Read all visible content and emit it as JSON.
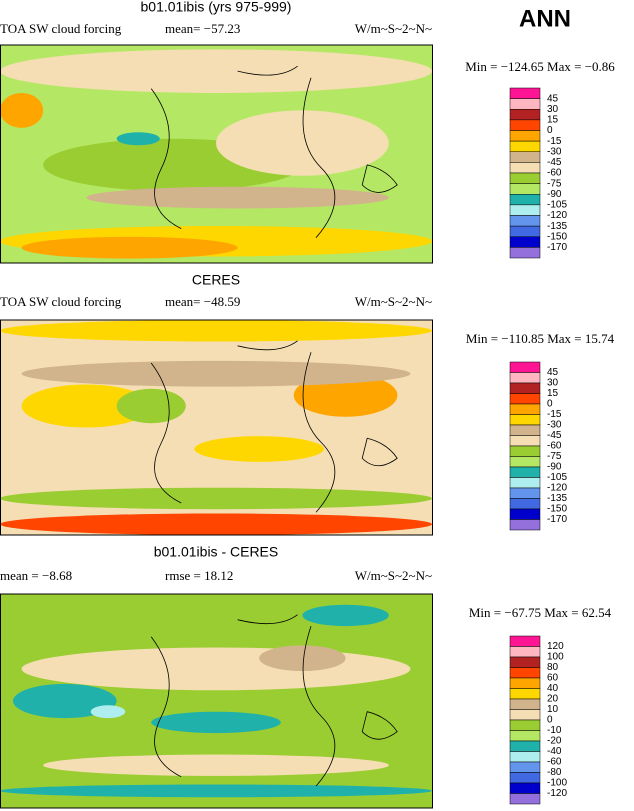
{
  "season": "ANN",
  "panels": [
    {
      "title": "b01.01ibis (yrs 975-999)",
      "left_label": "TOA SW cloud forcing",
      "mid_label": "mean= −57.23",
      "units": "W/m~S~2~N~",
      "minmax": "Min = −124.65 Max =  −0.86",
      "levels": [
        45,
        30,
        15,
        0,
        -15,
        -30,
        -45,
        -60,
        -75,
        -90,
        -105,
        -120,
        -135,
        -150,
        -170
      ],
      "colors": [
        "#ff1493",
        "#ffb6c1",
        "#b22222",
        "#ff4500",
        "#ffa500",
        "#ffd700",
        "#d2b48c",
        "#f5deb3",
        "#9acd32",
        "#b4e864",
        "#20b2aa",
        "#afeeee",
        "#6495ed",
        "#4169e1",
        "#0000cd",
        "#9370db"
      ]
    },
    {
      "title": "CERES",
      "left_label": "TOA SW cloud forcing",
      "mid_label": "mean= −48.59",
      "units": "W/m~S~2~N~",
      "minmax": "Min = −110.85 Max =  15.74",
      "levels": [
        45,
        30,
        15,
        0,
        -15,
        -30,
        -45,
        -60,
        -75,
        -90,
        -105,
        -120,
        -135,
        -150,
        -170
      ],
      "colors": [
        "#ff1493",
        "#ffb6c1",
        "#b22222",
        "#ff4500",
        "#ffa500",
        "#ffd700",
        "#d2b48c",
        "#f5deb3",
        "#9acd32",
        "#b4e864",
        "#20b2aa",
        "#afeeee",
        "#6495ed",
        "#4169e1",
        "#0000cd",
        "#9370db"
      ]
    },
    {
      "title": "b01.01ibis - CERES",
      "left_label": "mean =  −8.68",
      "mid_label": "rmse =  18.12",
      "units": "W/m~S~2~N~",
      "minmax": "Min = −67.75 Max =  62.54",
      "levels": [
        120,
        100,
        80,
        60,
        40,
        20,
        10,
        0,
        -10,
        -20,
        -40,
        -60,
        -80,
        -100,
        -120
      ],
      "colors": [
        "#ff1493",
        "#ffb6c1",
        "#b22222",
        "#ff4500",
        "#ffa500",
        "#ffd700",
        "#d2b48c",
        "#f5deb3",
        "#9acd32",
        "#b4e864",
        "#20b2aa",
        "#afeeee",
        "#6495ed",
        "#4169e1",
        "#0000cd",
        "#9370db"
      ]
    }
  ]
}
